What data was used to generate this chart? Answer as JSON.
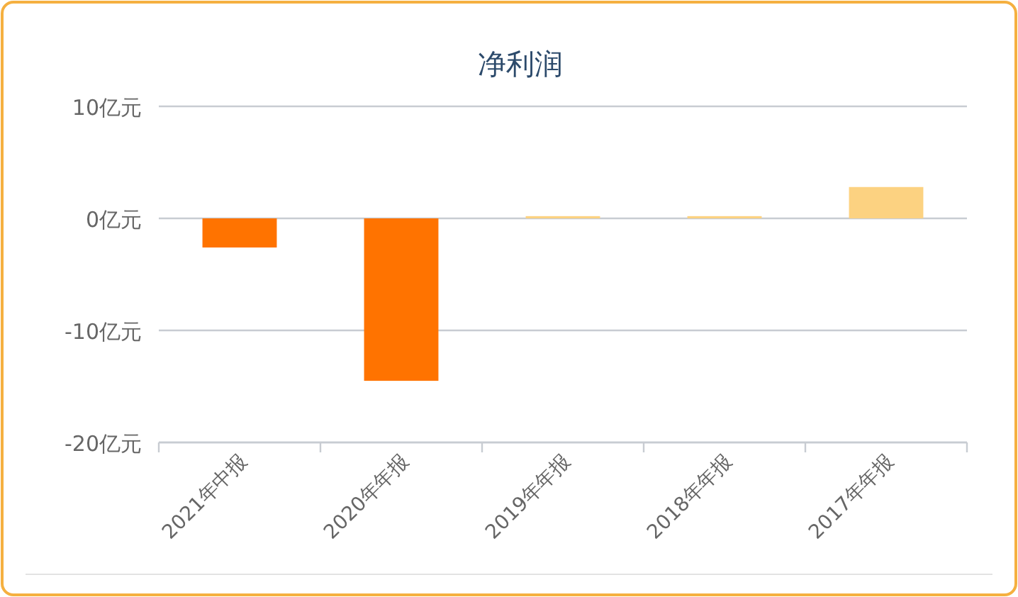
{
  "chart_data": {
    "type": "bar",
    "title": "净利润",
    "categories": [
      "2021年中报",
      "2020年年报",
      "2019年年报",
      "2018年年报",
      "2017年年报"
    ],
    "values": [
      -2.6,
      -14.5,
      0.2,
      0.2,
      2.8
    ],
    "colors": [
      "#ff7300",
      "#ff7300",
      "#fcd281",
      "#fcd281",
      "#fcd281"
    ],
    "ylim": [
      -20,
      10
    ],
    "yticks": [
      {
        "value": -20,
        "label": "-20亿元"
      },
      {
        "value": -10,
        "label": "-10亿元"
      },
      {
        "value": 0,
        "label": "0亿元"
      },
      {
        "value": 10,
        "label": "10亿元"
      }
    ],
    "grid": "y"
  }
}
